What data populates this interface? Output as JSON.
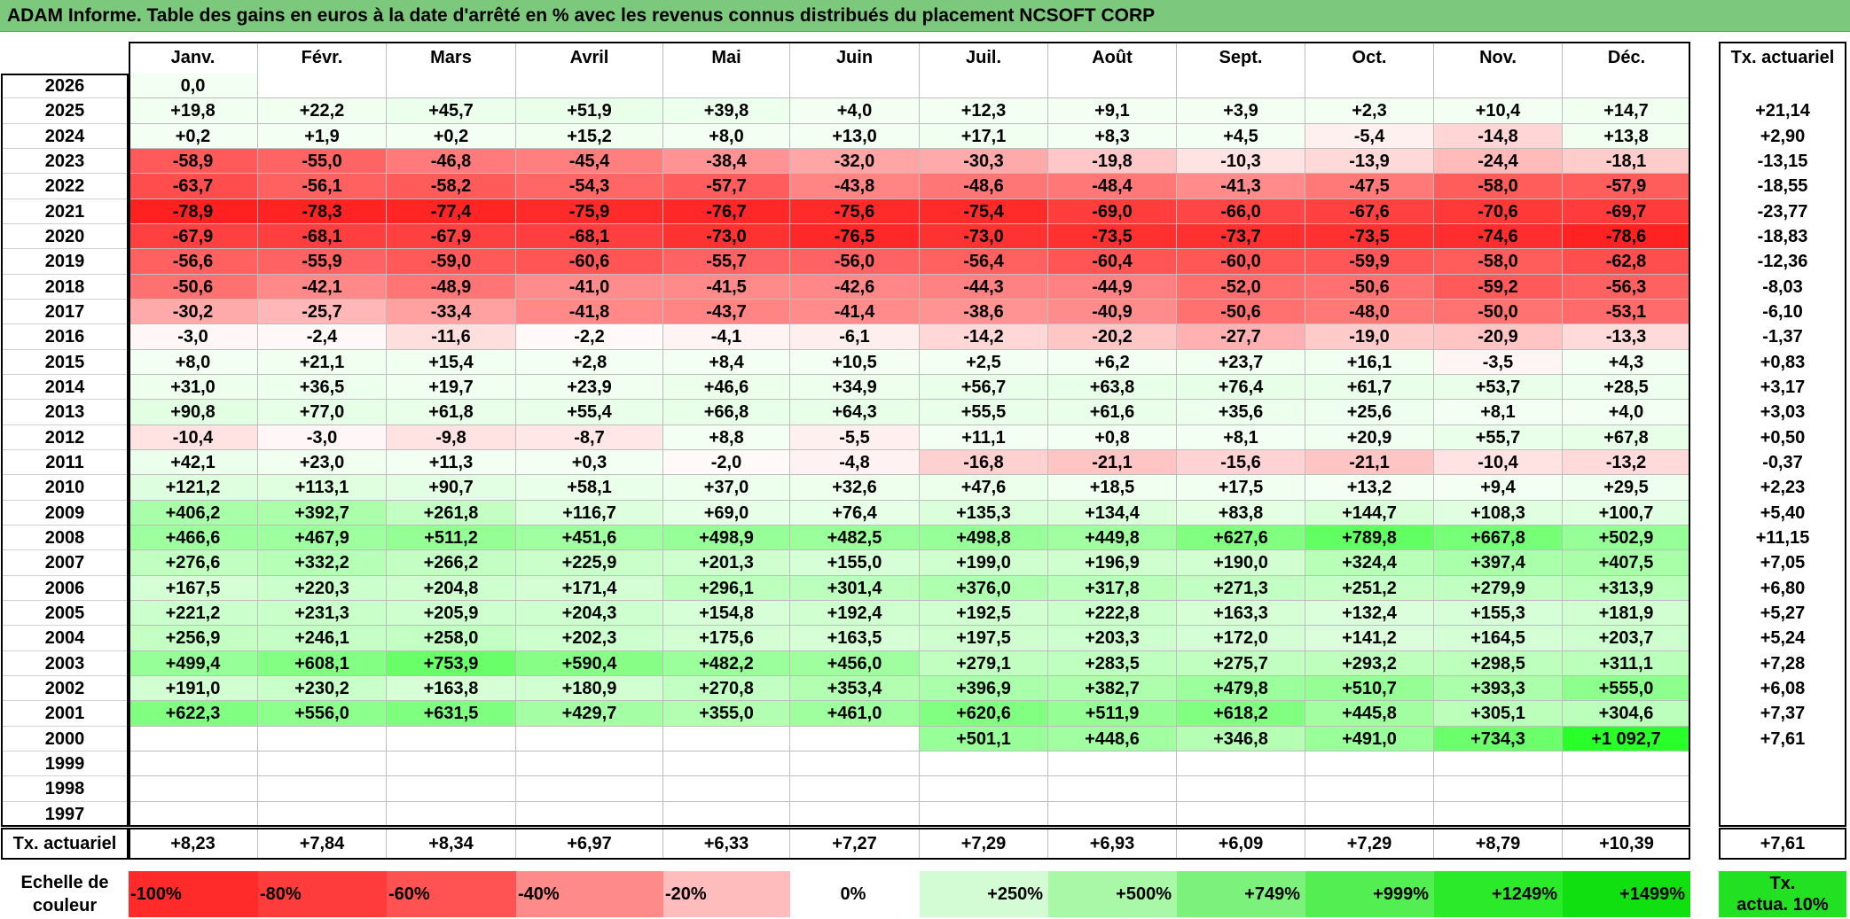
{
  "title": "ADAM Informe. Table des gains en euros à la date d'arrêté en % avec les revenus connus distribués du placement NCSOFT CORP",
  "months": [
    "Janv.",
    "Févr.",
    "Mars",
    "Avril",
    "Mai",
    "Juin",
    "Juil.",
    "Août",
    "Sept.",
    "Oct.",
    "Nov.",
    "Déc."
  ],
  "tx_header": "Tx. actuariel",
  "rows": [
    {
      "year": "2026",
      "values": [
        "0,0",
        "",
        "",
        "",
        "",
        "",
        "",
        "",
        "",
        "",
        "",
        ""
      ],
      "tx": ""
    },
    {
      "year": "2025",
      "values": [
        "+19,8",
        "+22,2",
        "+45,7",
        "+51,9",
        "+39,8",
        "+4,0",
        "+12,3",
        "+9,1",
        "+3,9",
        "+2,3",
        "+10,4",
        "+14,7"
      ],
      "tx": "+21,14"
    },
    {
      "year": "2024",
      "values": [
        "+0,2",
        "+1,9",
        "+0,2",
        "+15,2",
        "+8,0",
        "+13,0",
        "+17,1",
        "+8,3",
        "+4,5",
        "-5,4",
        "-14,8",
        "+13,8"
      ],
      "tx": "+2,90"
    },
    {
      "year": "2023",
      "values": [
        "-58,9",
        "-55,0",
        "-46,8",
        "-45,4",
        "-38,4",
        "-32,0",
        "-30,3",
        "-19,8",
        "-10,3",
        "-13,9",
        "-24,4",
        "-18,1"
      ],
      "tx": "-13,15"
    },
    {
      "year": "2022",
      "values": [
        "-63,7",
        "-56,1",
        "-58,2",
        "-54,3",
        "-57,7",
        "-43,8",
        "-48,6",
        "-48,4",
        "-41,3",
        "-47,5",
        "-58,0",
        "-57,9"
      ],
      "tx": "-18,55"
    },
    {
      "year": "2021",
      "values": [
        "-78,9",
        "-78,3",
        "-77,4",
        "-75,9",
        "-76,7",
        "-75,6",
        "-75,4",
        "-69,0",
        "-66,0",
        "-67,6",
        "-70,6",
        "-69,7"
      ],
      "tx": "-23,77"
    },
    {
      "year": "2020",
      "values": [
        "-67,9",
        "-68,1",
        "-67,9",
        "-68,1",
        "-73,0",
        "-76,5",
        "-73,0",
        "-73,5",
        "-73,7",
        "-73,5",
        "-74,6",
        "-78,6"
      ],
      "tx": "-18,83"
    },
    {
      "year": "2019",
      "values": [
        "-56,6",
        "-55,9",
        "-59,0",
        "-60,6",
        "-55,7",
        "-56,0",
        "-56,4",
        "-60,4",
        "-60,0",
        "-59,9",
        "-58,0",
        "-62,8"
      ],
      "tx": "-12,36"
    },
    {
      "year": "2018",
      "values": [
        "-50,6",
        "-42,1",
        "-48,9",
        "-41,0",
        "-41,5",
        "-42,6",
        "-44,3",
        "-44,9",
        "-52,0",
        "-50,6",
        "-59,2",
        "-56,3"
      ],
      "tx": "-8,03"
    },
    {
      "year": "2017",
      "values": [
        "-30,2",
        "-25,7",
        "-33,4",
        "-41,8",
        "-43,7",
        "-41,4",
        "-38,6",
        "-40,9",
        "-50,6",
        "-48,0",
        "-50,0",
        "-53,1"
      ],
      "tx": "-6,10"
    },
    {
      "year": "2016",
      "values": [
        "-3,0",
        "-2,4",
        "-11,6",
        "-2,2",
        "-4,1",
        "-6,1",
        "-14,2",
        "-20,2",
        "-27,7",
        "-19,0",
        "-20,9",
        "-13,3"
      ],
      "tx": "-1,37"
    },
    {
      "year": "2015",
      "values": [
        "+8,0",
        "+21,1",
        "+15,4",
        "+2,8",
        "+8,4",
        "+10,5",
        "+2,5",
        "+6,2",
        "+23,7",
        "+16,1",
        "-3,5",
        "+4,3"
      ],
      "tx": "+0,83"
    },
    {
      "year": "2014",
      "values": [
        "+31,0",
        "+36,5",
        "+19,7",
        "+23,9",
        "+46,6",
        "+34,9",
        "+56,7",
        "+63,8",
        "+76,4",
        "+61,7",
        "+53,7",
        "+28,5"
      ],
      "tx": "+3,17"
    },
    {
      "year": "2013",
      "values": [
        "+90,8",
        "+77,0",
        "+61,8",
        "+55,4",
        "+66,8",
        "+64,3",
        "+55,5",
        "+61,6",
        "+35,6",
        "+25,6",
        "+8,1",
        "+4,0"
      ],
      "tx": "+3,03"
    },
    {
      "year": "2012",
      "values": [
        "-10,4",
        "-3,0",
        "-9,8",
        "-8,7",
        "+8,8",
        "-5,5",
        "+11,1",
        "+0,8",
        "+8,1",
        "+20,9",
        "+55,7",
        "+67,8"
      ],
      "tx": "+0,50"
    },
    {
      "year": "2011",
      "values": [
        "+42,1",
        "+23,0",
        "+11,3",
        "+0,3",
        "-2,0",
        "-4,8",
        "-16,8",
        "-21,1",
        "-15,6",
        "-21,1",
        "-10,4",
        "-13,2"
      ],
      "tx": "-0,37"
    },
    {
      "year": "2010",
      "values": [
        "+121,2",
        "+113,1",
        "+90,7",
        "+58,1",
        "+37,0",
        "+32,6",
        "+47,6",
        "+18,5",
        "+17,5",
        "+13,2",
        "+9,4",
        "+29,5"
      ],
      "tx": "+2,23"
    },
    {
      "year": "2009",
      "values": [
        "+406,2",
        "+392,7",
        "+261,8",
        "+116,7",
        "+69,0",
        "+76,4",
        "+135,3",
        "+134,4",
        "+83,8",
        "+144,7",
        "+108,3",
        "+100,7"
      ],
      "tx": "+5,40"
    },
    {
      "year": "2008",
      "values": [
        "+466,6",
        "+467,9",
        "+511,2",
        "+451,6",
        "+498,9",
        "+482,5",
        "+498,8",
        "+449,8",
        "+627,6",
        "+789,8",
        "+667,8",
        "+502,9"
      ],
      "tx": "+11,15"
    },
    {
      "year": "2007",
      "values": [
        "+276,6",
        "+332,2",
        "+266,2",
        "+225,9",
        "+201,3",
        "+155,0",
        "+199,0",
        "+196,9",
        "+190,0",
        "+324,4",
        "+397,4",
        "+407,5"
      ],
      "tx": "+7,05"
    },
    {
      "year": "2006",
      "values": [
        "+167,5",
        "+220,3",
        "+204,8",
        "+171,4",
        "+296,1",
        "+301,4",
        "+376,0",
        "+317,8",
        "+271,3",
        "+251,2",
        "+279,9",
        "+313,9"
      ],
      "tx": "+6,80"
    },
    {
      "year": "2005",
      "values": [
        "+221,2",
        "+231,3",
        "+205,9",
        "+204,3",
        "+154,8",
        "+192,4",
        "+192,5",
        "+222,8",
        "+163,3",
        "+132,4",
        "+155,3",
        "+181,9"
      ],
      "tx": "+5,27"
    },
    {
      "year": "2004",
      "values": [
        "+256,9",
        "+246,1",
        "+258,0",
        "+202,3",
        "+175,6",
        "+163,5",
        "+197,5",
        "+203,3",
        "+172,0",
        "+141,2",
        "+164,5",
        "+203,7"
      ],
      "tx": "+5,24"
    },
    {
      "year": "2003",
      "values": [
        "+499,4",
        "+608,1",
        "+753,9",
        "+590,4",
        "+482,2",
        "+456,0",
        "+279,1",
        "+283,5",
        "+275,7",
        "+293,2",
        "+298,5",
        "+311,1"
      ],
      "tx": "+7,28"
    },
    {
      "year": "2002",
      "values": [
        "+191,0",
        "+230,2",
        "+163,8",
        "+180,9",
        "+270,8",
        "+353,4",
        "+396,9",
        "+382,7",
        "+479,8",
        "+510,7",
        "+393,3",
        "+555,0"
      ],
      "tx": "+6,08"
    },
    {
      "year": "2001",
      "values": [
        "+622,3",
        "+556,0",
        "+631,5",
        "+429,7",
        "+355,0",
        "+461,0",
        "+620,6",
        "+511,9",
        "+618,2",
        "+445,8",
        "+305,1",
        "+304,6"
      ],
      "tx": "+7,37"
    },
    {
      "year": "2000",
      "values": [
        "",
        "",
        "",
        "",
        "",
        "",
        "+501,1",
        "+448,6",
        "+346,8",
        "+491,0",
        "+734,3",
        "+1 092,7"
      ],
      "tx": "+7,61"
    },
    {
      "year": "1999",
      "values": [
        "",
        "",
        "",
        "",
        "",
        "",
        "",
        "",
        "",
        "",
        "",
        ""
      ],
      "tx": ""
    },
    {
      "year": "1998",
      "values": [
        "",
        "",
        "",
        "",
        "",
        "",
        "",
        "",
        "",
        "",
        "",
        ""
      ],
      "tx": ""
    },
    {
      "year": "1997",
      "values": [
        "",
        "",
        "",
        "",
        "",
        "",
        "",
        "",
        "",
        "",
        "",
        ""
      ],
      "tx": ""
    }
  ],
  "footer": {
    "label": "Tx. actuariel",
    "values": [
      "+8,23",
      "+7,84",
      "+8,34",
      "+6,97",
      "+6,33",
      "+7,27",
      "+7,29",
      "+6,93",
      "+6,09",
      "+7,29",
      "+8,79",
      "+10,39"
    ],
    "tx": "+7,61"
  },
  "scale": {
    "label_line1": "Echelle de",
    "label_line2": "couleur",
    "items": [
      {
        "text": "-100%",
        "color": "#ff2a2a",
        "align": "left"
      },
      {
        "text": "-80%",
        "color": "#ff3c3c",
        "align": "left"
      },
      {
        "text": "-60%",
        "color": "#ff5252",
        "align": "left"
      },
      {
        "text": "-40%",
        "color": "#ff8a8a",
        "align": "left"
      },
      {
        "text": "-20%",
        "color": "#ffbcbc",
        "align": "left"
      },
      {
        "text": "0%",
        "color": "#ffffff",
        "align": "center"
      },
      {
        "text": "+250%",
        "color": "#d4fcd4",
        "align": "right"
      },
      {
        "text": "+500%",
        "color": "#a8f8a8",
        "align": "right"
      },
      {
        "text": "+749%",
        "color": "#7cf27c",
        "align": "right"
      },
      {
        "text": "+999%",
        "color": "#52ee52",
        "align": "right"
      },
      {
        "text": "+1249%",
        "color": "#2aea2a",
        "align": "right"
      },
      {
        "text": "+1499%",
        "color": "#10e010",
        "align": "right"
      }
    ],
    "tx_line1": "Tx.",
    "tx_line2": "actua. 10%",
    "tx_color": "#22e022"
  }
}
